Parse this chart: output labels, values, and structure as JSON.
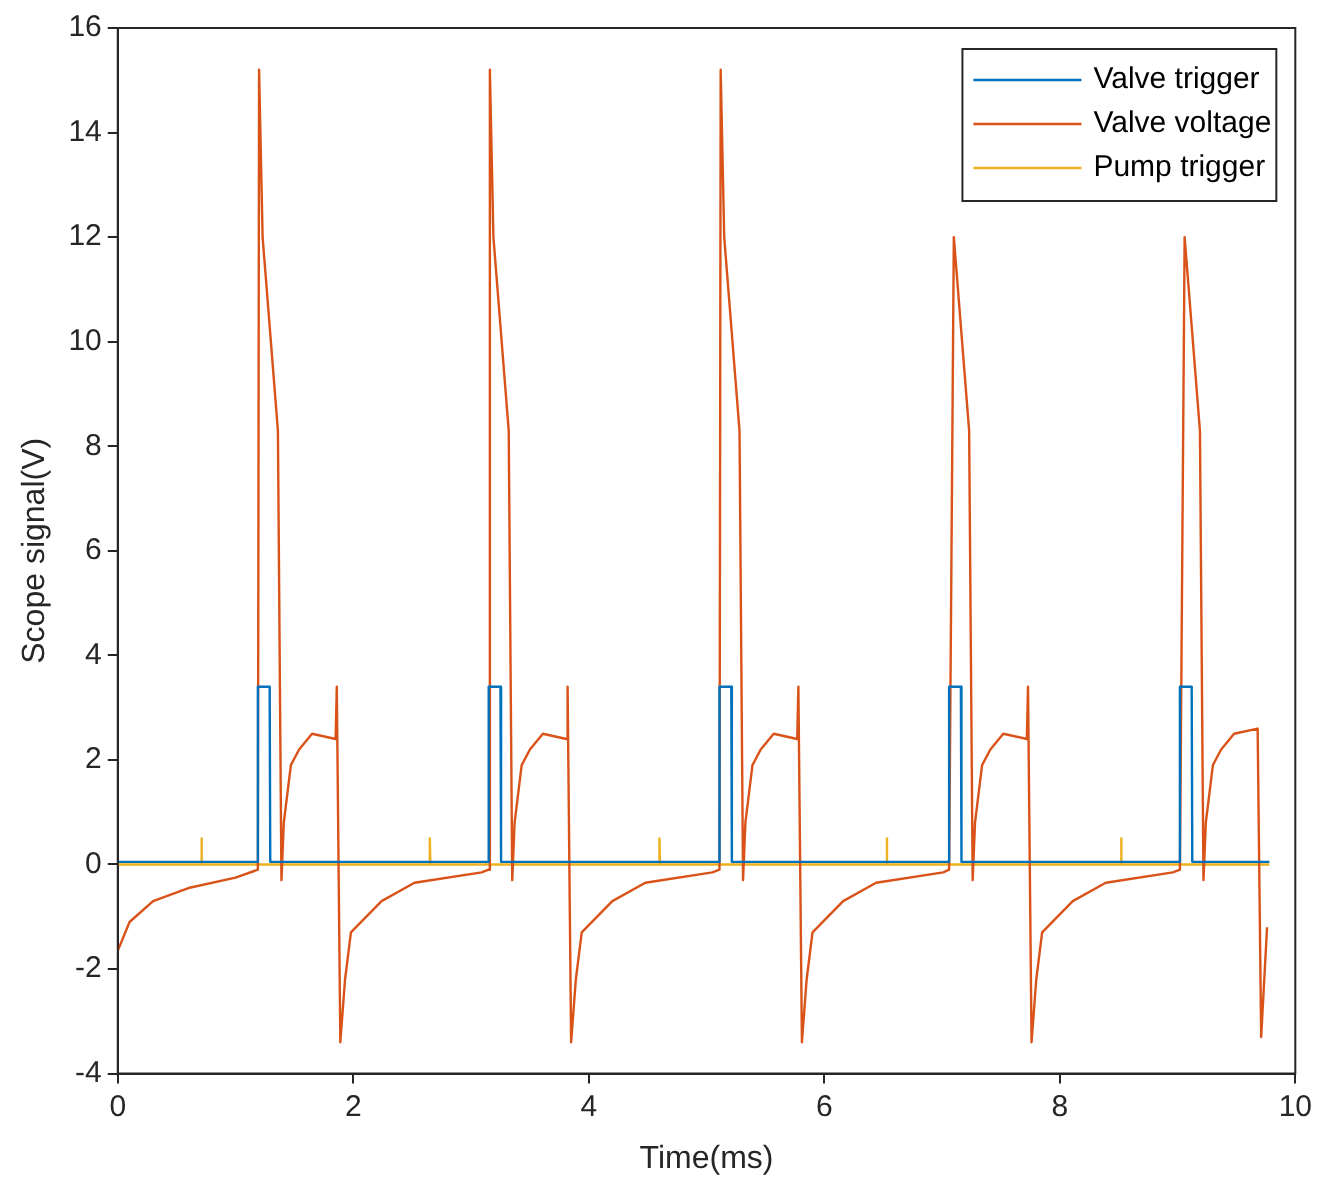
{
  "chart_data": {
    "type": "line",
    "xlabel": "Time(ms)",
    "ylabel": "Scope signal(V)",
    "xlim": [
      0,
      10
    ],
    "ylim": [
      -4,
      16
    ],
    "xticks": [
      0,
      2,
      4,
      6,
      8,
      10
    ],
    "yticks": [
      -4,
      -2,
      0,
      2,
      4,
      6,
      8,
      10,
      12,
      14,
      16
    ],
    "legend": "top right",
    "series": [
      {
        "name": "Valve trigger",
        "color": "#0072bd",
        "x": [
          0,
          1.185,
          1.19,
          1.29,
          1.295,
          3.145,
          3.15,
          3.25,
          3.255,
          5.105,
          5.11,
          5.21,
          5.215,
          7.055,
          7.06,
          7.16,
          7.165,
          9.015,
          9.02,
          9.12,
          9.125,
          9.78
        ],
        "values": [
          0.05,
          0.05,
          3.4,
          3.4,
          0.05,
          0.05,
          3.4,
          3.4,
          0.05,
          0.05,
          3.4,
          3.4,
          0.05,
          0.05,
          3.4,
          3.4,
          0.05,
          0.05,
          3.4,
          3.4,
          0.05,
          0.05
        ]
      },
      {
        "name": "Valve voltage",
        "color": "#d95319",
        "x": [
          0,
          0.1,
          0.3,
          0.6,
          1.0,
          1.19,
          1.2,
          1.23,
          1.36,
          1.39,
          1.41,
          1.47,
          1.54,
          1.65,
          1.85,
          1.86,
          1.89,
          1.93,
          1.98,
          2.24,
          2.52,
          3.09,
          3.15,
          3.16,
          3.19,
          3.32,
          3.35,
          3.37,
          3.43,
          3.5,
          3.61,
          3.81,
          3.82,
          3.85,
          3.89,
          3.94,
          4.2,
          4.48,
          5.05,
          5.11,
          5.12,
          5.15,
          5.28,
          5.31,
          5.33,
          5.39,
          5.46,
          5.57,
          5.77,
          5.78,
          5.81,
          5.85,
          5.9,
          6.16,
          6.44,
          7.01,
          7.06,
          7.1,
          7.23,
          7.26,
          7.28,
          7.34,
          7.41,
          7.52,
          7.72,
          7.73,
          7.76,
          7.8,
          7.85,
          8.11,
          8.39,
          8.96,
          9.02,
          9.06,
          9.19,
          9.22,
          9.24,
          9.3,
          9.37,
          9.48,
          9.68,
          9.71,
          9.76
        ],
        "values": [
          -1.65,
          -1.1,
          -0.7,
          -0.45,
          -0.25,
          -0.1,
          15.2,
          12.0,
          8.3,
          -0.3,
          0.8,
          1.9,
          2.2,
          2.5,
          2.4,
          3.4,
          -3.4,
          -2.2,
          -1.3,
          -0.7,
          -0.35,
          -0.15,
          -0.1,
          15.2,
          12.0,
          8.3,
          -0.3,
          0.8,
          1.9,
          2.2,
          2.5,
          2.4,
          3.4,
          -3.4,
          -2.2,
          -1.3,
          -0.7,
          -0.35,
          -0.15,
          -0.1,
          15.2,
          12.0,
          8.3,
          -0.3,
          0.8,
          1.9,
          2.2,
          2.5,
          2.4,
          3.4,
          -3.4,
          -2.2,
          -1.3,
          -0.7,
          -0.35,
          -0.15,
          -0.1,
          12.0,
          8.3,
          -0.3,
          0.8,
          1.9,
          2.2,
          2.5,
          2.4,
          3.4,
          -3.4,
          -2.2,
          -1.3,
          -0.7,
          -0.35,
          -0.15,
          -0.1,
          12.0,
          8.3,
          -0.3,
          0.8,
          1.9,
          2.2,
          2.5,
          2.6,
          -3.3,
          -1.2
        ]
      },
      {
        "name": "Pump trigger",
        "color": "#edb120",
        "x": [
          0,
          0.705,
          0.71,
          0.715,
          2.645,
          2.65,
          2.655,
          4.595,
          4.6,
          4.605,
          6.525,
          6.53,
          6.535,
          8.515,
          8.52,
          8.525,
          9.78
        ],
        "values": [
          0,
          0,
          0.5,
          0,
          0,
          0.5,
          0,
          0,
          0.5,
          0,
          0,
          0.5,
          0,
          0,
          0.5,
          0,
          0
        ]
      }
    ]
  }
}
